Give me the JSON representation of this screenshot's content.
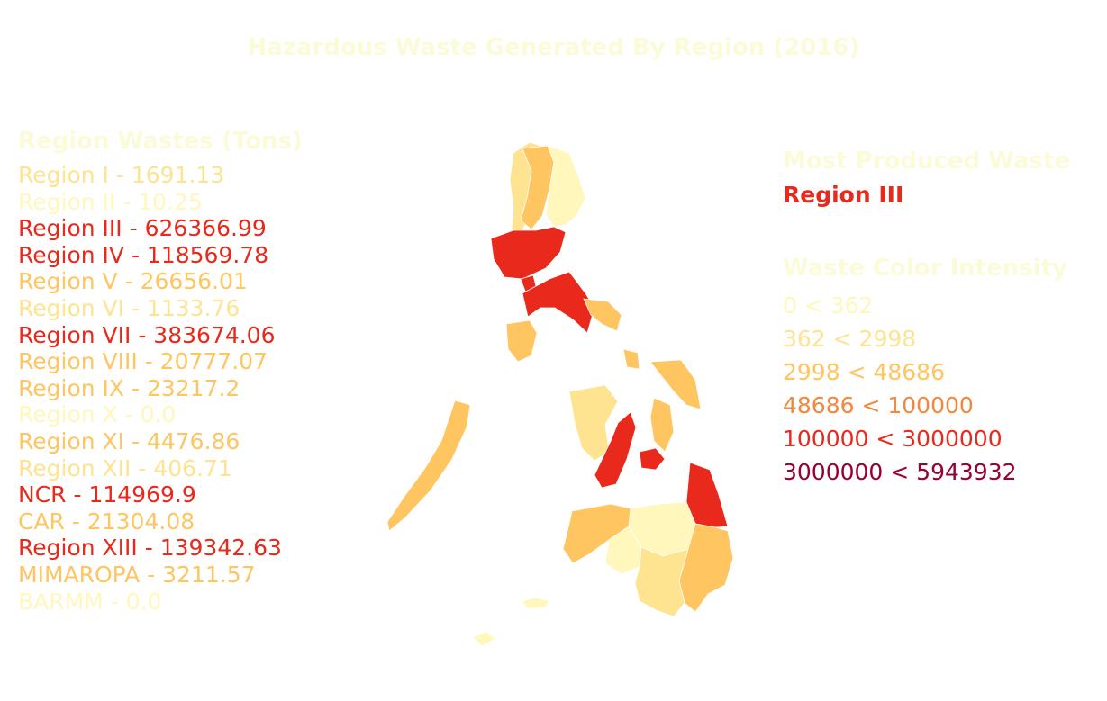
{
  "title": "Hazardous Waste Generated By Region (2016)",
  "legend_heading": "Region Wastes (Tons)",
  "regions": [
    {
      "label": "Region I - 1691.13",
      "color": "#fee391"
    },
    {
      "label": "Region II - 10.25",
      "color": "#fff7bc"
    },
    {
      "label": "Region III - 626366.99",
      "color": "#e8291c"
    },
    {
      "label": "Region IV - 118569.78",
      "color": "#e8291c"
    },
    {
      "label": "Region V - 26656.01",
      "color": "#fec561"
    },
    {
      "label": "Region VI - 1133.76",
      "color": "#fee391"
    },
    {
      "label": "Region VII - 383674.06",
      "color": "#e8291c"
    },
    {
      "label": "Region VIII - 20777.07",
      "color": "#fec561"
    },
    {
      "label": "Region IX - 23217.2",
      "color": "#fec561"
    },
    {
      "label": "Region X - 0.0",
      "color": "#fff7bc"
    },
    {
      "label": "Region XI - 4476.86",
      "color": "#fec561"
    },
    {
      "label": "Region XII - 406.71",
      "color": "#fee391"
    },
    {
      "label": "NCR - 114969.9",
      "color": "#e8291c"
    },
    {
      "label": "CAR - 21304.08",
      "color": "#fec561"
    },
    {
      "label": "Region XIII - 139342.63",
      "color": "#e8291c"
    },
    {
      "label": "MIMAROPA - 3211.57",
      "color": "#fec561"
    },
    {
      "label": "BARMM - 0.0",
      "color": "#fff7bc"
    }
  ],
  "most_produced": {
    "heading": "Most Produced Waste",
    "value": "Region III",
    "color": "#e8291c"
  },
  "intensity": {
    "heading": "Waste Color Intensity",
    "bins": [
      {
        "label": "0 < 362",
        "color": "#fff7bc"
      },
      {
        "label": "362 < 2998",
        "color": "#fee391"
      },
      {
        "label": "2998 < 48686",
        "color": "#fec561"
      },
      {
        "label": "48686 < 100000",
        "color": "#f4873c"
      },
      {
        "label": "100000 < 3000000",
        "color": "#e8291c"
      },
      {
        "label": "3000000 < 5943932",
        "color": "#990033"
      }
    ]
  },
  "heading_color": "#fcfbd8"
}
